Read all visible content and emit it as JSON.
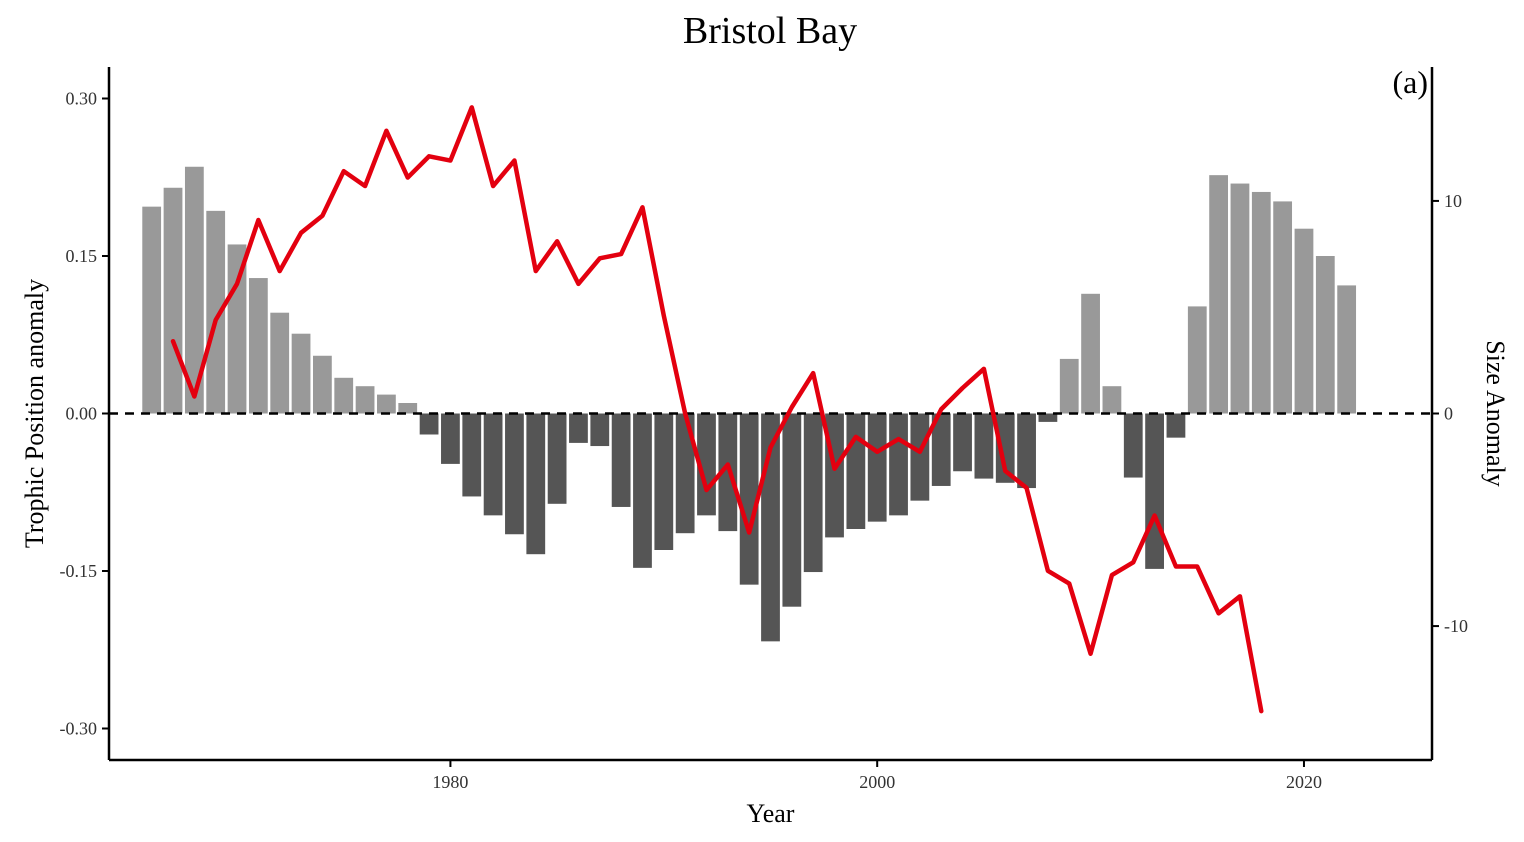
{
  "chart_data": {
    "type": "bar+line",
    "title": "Bristol Bay",
    "panel_label": "(a)",
    "xlabel": "Year",
    "ylabel_left": "Trophic Position anomaly",
    "ylabel_right": "Size Anomaly",
    "xlim": [
      1964,
      2026
    ],
    "ylim_left": [
      -0.33,
      0.33
    ],
    "ylim_right": [
      -16.3,
      16.3
    ],
    "x_ticks": [
      1980,
      2000,
      2020
    ],
    "y_ticks_left": [
      -0.3,
      -0.15,
      0.0,
      0.15,
      0.3
    ],
    "y_ticks_left_labels": [
      "-0.30",
      "-0.15",
      "0.00",
      "0.15",
      "0.30"
    ],
    "y_ticks_right": [
      -10,
      0,
      10
    ],
    "y_ticks_right_labels": [
      "-10",
      "0",
      "10"
    ],
    "grid": false,
    "reference_line": {
      "y": 0,
      "style": "dashed"
    },
    "colors": {
      "bar_positive": "#999999",
      "bar_negative": "#555555",
      "line": "#e3000f",
      "axis": "#000000"
    },
    "bars": {
      "axis": "left",
      "x": [
        1966,
        1967,
        1968,
        1969,
        1970,
        1971,
        1972,
        1973,
        1974,
        1975,
        1976,
        1977,
        1978,
        1979,
        1980,
        1981,
        1982,
        1983,
        1984,
        1985,
        1986,
        1987,
        1988,
        1989,
        1990,
        1991,
        1992,
        1993,
        1994,
        1995,
        1996,
        1997,
        1998,
        1999,
        2000,
        2001,
        2002,
        2003,
        2004,
        2005,
        2006,
        2007,
        2008,
        2009,
        2010,
        2011,
        2012,
        2013,
        2014,
        2015,
        2016,
        2017,
        2018,
        2019,
        2020,
        2021,
        2022
      ],
      "values": [
        0.197,
        0.215,
        0.235,
        0.193,
        0.161,
        0.129,
        0.096,
        0.076,
        0.055,
        0.034,
        0.026,
        0.018,
        0.01,
        -0.02,
        -0.048,
        -0.079,
        -0.097,
        -0.115,
        -0.134,
        -0.086,
        -0.028,
        -0.031,
        -0.089,
        -0.147,
        -0.13,
        -0.114,
        -0.097,
        -0.112,
        -0.163,
        -0.217,
        -0.184,
        -0.151,
        -0.118,
        -0.11,
        -0.103,
        -0.097,
        -0.083,
        -0.069,
        -0.055,
        -0.062,
        -0.066,
        -0.071,
        -0.008,
        0.052,
        0.114,
        0.026,
        -0.061,
        -0.148,
        -0.023,
        0.102,
        0.227,
        0.219,
        0.211,
        0.202,
        0.176,
        0.15,
        0.122
      ]
    },
    "line": {
      "axis": "right",
      "x": [
        1967,
        1968,
        1969,
        1970,
        1971,
        1972,
        1973,
        1974,
        1975,
        1976,
        1977,
        1978,
        1979,
        1980,
        1981,
        1982,
        1983,
        1984,
        1985,
        1986,
        1987,
        1988,
        1989,
        1990,
        1991,
        1992,
        1993,
        1994,
        1995,
        1996,
        1997,
        1998,
        1999,
        2000,
        2001,
        2002,
        2003,
        2004,
        2005,
        2006,
        2007,
        2008,
        2009,
        2010,
        2011,
        2012,
        2013,
        2014,
        2015,
        2016,
        2017,
        2018
      ],
      "values": [
        3.4,
        0.8,
        4.4,
        6.1,
        9.1,
        6.7,
        8.5,
        9.3,
        11.4,
        10.7,
        13.3,
        11.1,
        12.1,
        11.9,
        14.4,
        10.7,
        11.9,
        6.7,
        8.1,
        6.1,
        7.3,
        7.5,
        9.7,
        4.6,
        0.0,
        -3.6,
        -2.4,
        -5.6,
        -1.6,
        0.3,
        1.9,
        -2.6,
        -1.1,
        -1.8,
        -1.2,
        -1.8,
        0.2,
        1.2,
        2.1,
        -2.7,
        -3.5,
        -7.4,
        -8.0,
        -11.3,
        -7.6,
        -7.0,
        -4.8,
        -7.2,
        -7.2,
        -9.4,
        -8.6,
        -14.0
      ]
    }
  }
}
